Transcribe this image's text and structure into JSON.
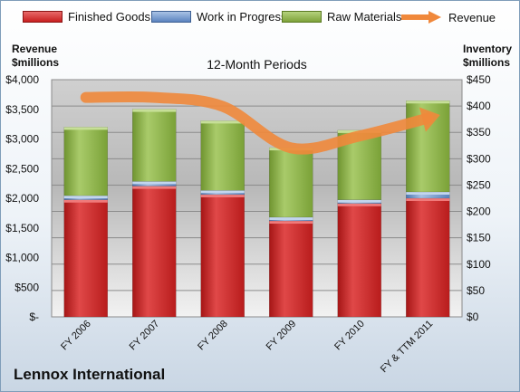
{
  "chart_data": {
    "type": "bar",
    "stacked": true,
    "title": "12-Month Periods",
    "categories": [
      "FY 2006",
      "FY 2007",
      "FY 2008",
      "FY 2009",
      "FY 2010",
      "FY & TTM 2011"
    ],
    "series": [
      {
        "name": "Finished Goods",
        "axis": "right",
        "color": "#d42a2a",
        "values": [
          222,
          248,
          232,
          182,
          215,
          225
        ]
      },
      {
        "name": "Work in Progress",
        "axis": "right",
        "color": "#6c93c9",
        "values": [
          8,
          9,
          8,
          7,
          7,
          12
        ]
      },
      {
        "name": "Raw Materials",
        "axis": "right",
        "color": "#8cb046",
        "values": [
          130,
          137,
          132,
          132,
          132,
          173
        ]
      },
      {
        "name": "Revenue",
        "axis": "left",
        "color": "#f0883b",
        "values": [
          3700,
          3700,
          3550,
          2850,
          3050,
          3350
        ]
      }
    ],
    "left_axis": {
      "label": "Revenue\n$millions",
      "ylim": [
        0,
        4000
      ],
      "ticks": [
        "$-",
        "$500",
        "$1,000",
        "$1,500",
        "$2,000",
        "$2,500",
        "$3,000",
        "$3,500",
        "$4,000"
      ]
    },
    "right_axis": {
      "label": "Inventory\n$millions",
      "ylim": [
        0,
        450
      ],
      "ticks": [
        "$0",
        "$50",
        "$100",
        "$150",
        "$200",
        "$250",
        "$300",
        "$350",
        "$400",
        "$450"
      ]
    },
    "grid": true,
    "legend": "top"
  },
  "company": "Lennox International"
}
